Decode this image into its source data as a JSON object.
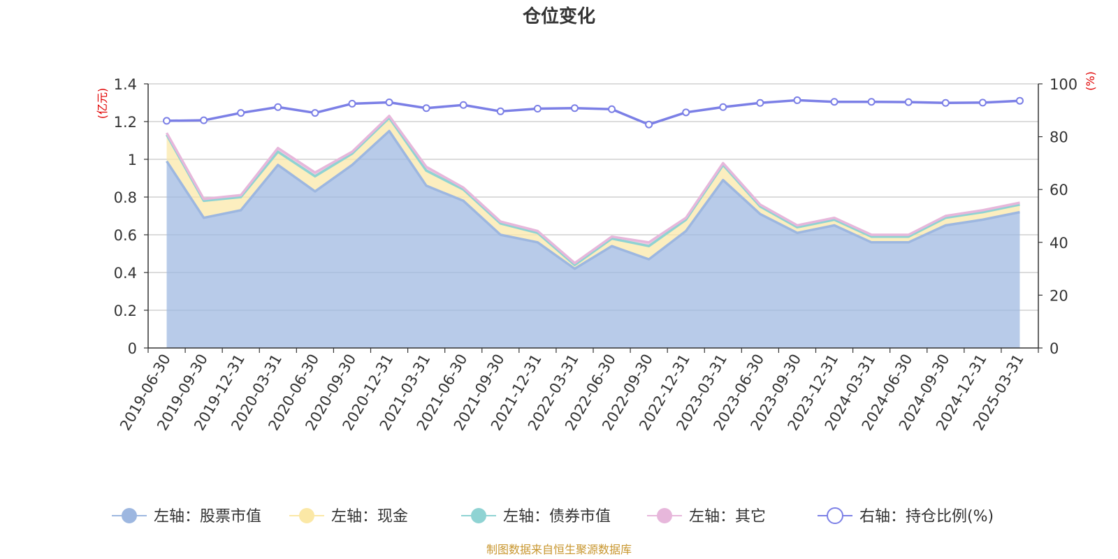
{
  "chart_data": {
    "type": "area",
    "title": "仓位变化",
    "left_axis_unit": "(亿元)",
    "right_axis_unit": "(%)",
    "left_ylim": [
      0,
      1.4
    ],
    "left_ticks": [
      "0",
      "0.2",
      "0.4",
      "0.6",
      "0.8",
      "1",
      "1.2",
      "1.4"
    ],
    "right_ylim": [
      0,
      100
    ],
    "right_ticks": [
      "0",
      "20",
      "40",
      "60",
      "80",
      "100"
    ],
    "categories": [
      "2019-06-30",
      "2019-09-30",
      "2019-12-31",
      "2020-03-31",
      "2020-06-30",
      "2020-09-30",
      "2020-12-31",
      "2021-03-31",
      "2021-06-30",
      "2021-09-30",
      "2021-12-31",
      "2022-03-31",
      "2022-06-30",
      "2022-09-30",
      "2022-12-31",
      "2023-03-31",
      "2023-06-30",
      "2023-09-30",
      "2023-12-31",
      "2024-03-31",
      "2024-06-30",
      "2024-09-30",
      "2024-12-31",
      "2025-03-31"
    ],
    "stacked": true,
    "grid": true,
    "legend_position": "bottom",
    "series": [
      {
        "name": "左轴：股票市值",
        "axis": "left",
        "color": "#9db7e0",
        "values": [
          0.99,
          0.69,
          0.73,
          0.97,
          0.83,
          0.97,
          1.15,
          0.86,
          0.78,
          0.6,
          0.56,
          0.42,
          0.54,
          0.47,
          0.62,
          0.89,
          0.71,
          0.61,
          0.65,
          0.56,
          0.56,
          0.65,
          0.68,
          0.72
        ]
      },
      {
        "name": "左轴：现金",
        "axis": "left",
        "color": "#fbe8a6",
        "values": [
          0.14,
          0.09,
          0.07,
          0.07,
          0.08,
          0.06,
          0.07,
          0.08,
          0.06,
          0.06,
          0.05,
          0.02,
          0.04,
          0.07,
          0.06,
          0.08,
          0.04,
          0.03,
          0.03,
          0.03,
          0.03,
          0.04,
          0.04,
          0.04
        ]
      },
      {
        "name": "左轴：债券市值",
        "axis": "left",
        "color": "#8fd3d3",
        "values": [
          0,
          0,
          0,
          0,
          0,
          0,
          0,
          0,
          0,
          0,
          0,
          0,
          0,
          0,
          0,
          0,
          0,
          0,
          0,
          0,
          0,
          0,
          0,
          0
        ]
      },
      {
        "name": "左轴：其它",
        "axis": "left",
        "color": "#e7b7db",
        "values": [
          0.01,
          0.01,
          0.01,
          0.02,
          0.02,
          0.01,
          0.01,
          0.02,
          0.01,
          0.01,
          0.01,
          0.01,
          0.01,
          0.02,
          0.01,
          0.01,
          0.01,
          0.01,
          0.01,
          0.01,
          0.01,
          0.01,
          0.01,
          0.01
        ]
      },
      {
        "name": "右轴：持仓比例(%)",
        "axis": "right",
        "color": "#7b7fe6",
        "values": [
          86.0,
          86.2,
          89.0,
          91.2,
          89.0,
          92.5,
          93.0,
          90.8,
          92.0,
          89.6,
          90.6,
          90.8,
          90.4,
          84.6,
          89.2,
          91.2,
          92.8,
          93.8,
          93.2,
          93.2,
          93.1,
          92.8,
          92.9,
          93.6
        ]
      }
    ]
  },
  "footer": {
    "source_text": "制图数据来自恒生聚源数据库"
  }
}
